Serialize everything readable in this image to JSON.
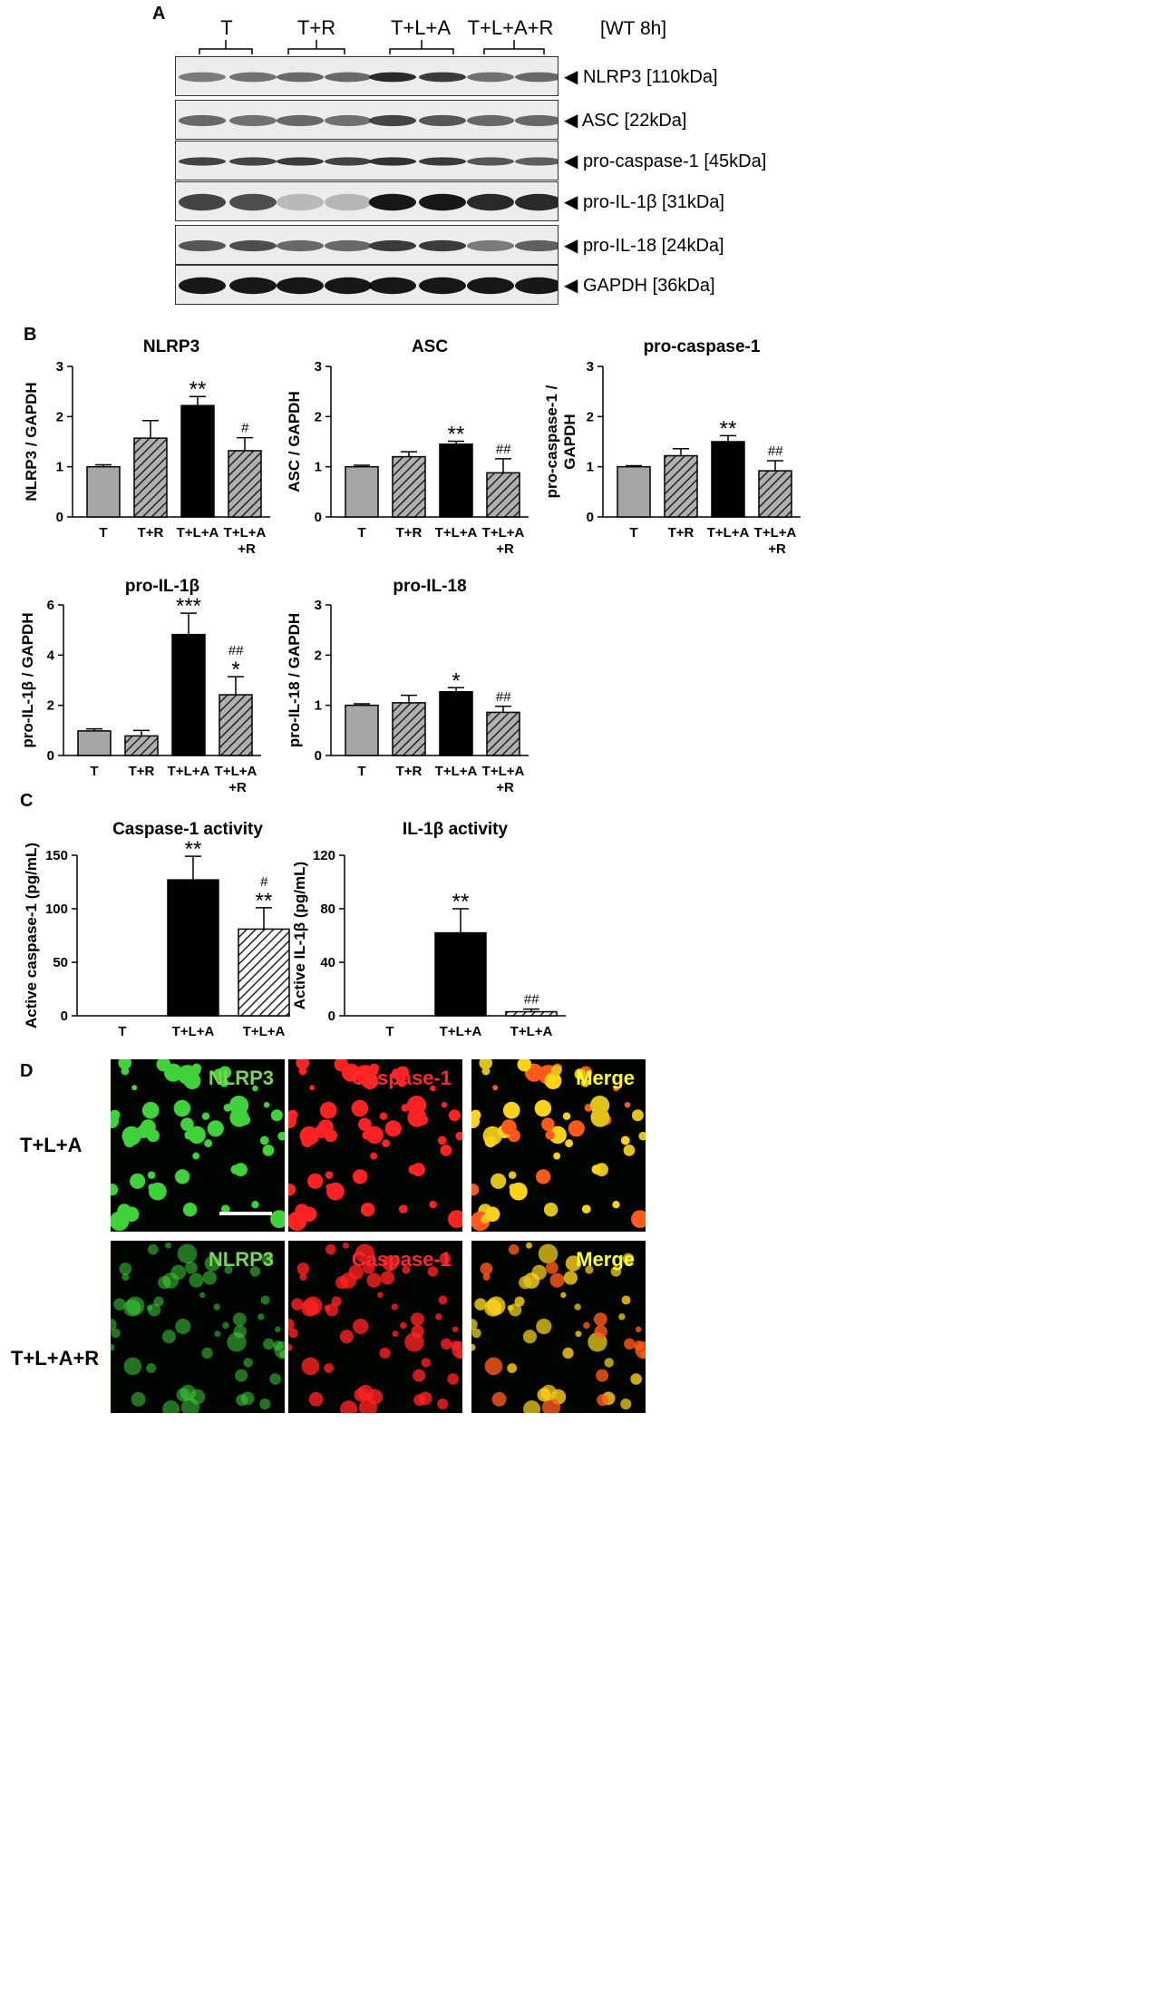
{
  "panelA": {
    "letter": "A",
    "lanes": [
      "T",
      "T+R",
      "T+L+A",
      "T+L+A+R"
    ],
    "condition": "[WT 8h]",
    "bands": [
      {
        "label": "NLRP3 [110kDa]",
        "intensity": [
          0.45,
          0.5,
          0.55,
          0.55,
          0.9,
          0.8,
          0.5,
          0.55
        ],
        "width": 7
      },
      {
        "label": "ASC [22kDa]",
        "intensity": [
          0.55,
          0.5,
          0.55,
          0.5,
          0.75,
          0.65,
          0.55,
          0.55
        ],
        "width": 8
      },
      {
        "label": "pro-caspase-1 [45kDa]",
        "intensity": [
          0.75,
          0.75,
          0.8,
          0.75,
          0.85,
          0.8,
          0.65,
          0.6
        ],
        "width": 6
      },
      {
        "label": "pro-IL-1β [31kDa]",
        "intensity": [
          0.75,
          0.7,
          0.1,
          0.12,
          1.0,
          1.0,
          0.9,
          0.9
        ],
        "width": 12
      },
      {
        "label": "pro-IL-18 [24kDa]",
        "intensity": [
          0.65,
          0.7,
          0.55,
          0.55,
          0.8,
          0.8,
          0.45,
          0.6
        ],
        "width": 8
      },
      {
        "label": "GAPDH [36kDa]",
        "intensity": [
          1,
          1,
          1,
          1,
          1,
          1,
          1,
          1
        ],
        "width": 12
      }
    ]
  },
  "panelB": {
    "letter": "B",
    "charts": [
      {
        "title": "NLRP3",
        "ylabel": "NLRP3 / GAPDH",
        "ymax": 3,
        "ticks": [
          0,
          1,
          2,
          3
        ],
        "categories": [
          "T",
          "T+R",
          "T+L+A",
          "T+L+A\n+R"
        ],
        "values": [
          1.0,
          1.57,
          2.22,
          1.32
        ],
        "errors": [
          0.04,
          0.35,
          0.18,
          0.26
        ],
        "sig_star": [
          "",
          "",
          "**",
          ""
        ],
        "sig_hash": [
          "",
          "",
          "",
          "#"
        ]
      },
      {
        "title": "ASC",
        "ylabel": "ASC / GAPDH",
        "ymax": 3,
        "ticks": [
          0,
          1,
          2,
          3
        ],
        "categories": [
          "T",
          "T+R",
          "T+L+A",
          "T+L+A\n+R"
        ],
        "values": [
          1.0,
          1.2,
          1.45,
          0.88
        ],
        "errors": [
          0.03,
          0.1,
          0.06,
          0.28
        ],
        "sig_star": [
          "",
          "",
          "**",
          ""
        ],
        "sig_hash": [
          "",
          "",
          "",
          "##"
        ]
      },
      {
        "title": "pro-caspase-1",
        "ylabel": "pro-caspase-1 /\nGAPDH",
        "ymax": 3,
        "ticks": [
          0,
          1,
          2,
          3
        ],
        "categories": [
          "T",
          "T+R",
          "T+L+A",
          "T+L+A\n+R"
        ],
        "values": [
          1.0,
          1.22,
          1.5,
          0.92
        ],
        "errors": [
          0.02,
          0.14,
          0.12,
          0.2
        ],
        "sig_star": [
          "",
          "",
          "**",
          ""
        ],
        "sig_hash": [
          "",
          "",
          "",
          "##"
        ]
      },
      {
        "title": "pro-IL-1β",
        "ylabel": "pro-IL-1β / GAPDH",
        "ymax": 6,
        "ticks": [
          0,
          2,
          4,
          6
        ],
        "categories": [
          "T",
          "T+R",
          "T+L+A",
          "T+L+A\n+R"
        ],
        "values": [
          0.98,
          0.78,
          4.82,
          2.42
        ],
        "errors": [
          0.08,
          0.22,
          0.85,
          0.72
        ],
        "sig_star": [
          "",
          "",
          "***",
          "*"
        ],
        "sig_hash": [
          "",
          "",
          "",
          "##"
        ]
      },
      {
        "title": "pro-IL-18",
        "ylabel": "pro-IL-18 / GAPDH",
        "ymax": 3,
        "ticks": [
          0,
          1,
          2,
          3
        ],
        "categories": [
          "T",
          "T+R",
          "T+L+A",
          "T+L+A\n+R"
        ],
        "values": [
          1.0,
          1.05,
          1.27,
          0.86
        ],
        "errors": [
          0.03,
          0.15,
          0.08,
          0.12
        ],
        "sig_star": [
          "",
          "",
          "*",
          ""
        ],
        "sig_hash": [
          "",
          "",
          "",
          "##"
        ]
      }
    ]
  },
  "panelC": {
    "letter": "C",
    "charts": [
      {
        "title": "Caspase-1  activity",
        "ylabel": "Active caspase-1 (pg/mL)",
        "ymax": 150,
        "ticks": [
          0,
          50,
          100,
          150
        ],
        "categories": [
          "T",
          "T+L+A",
          "T+L+A\n+R"
        ],
        "values": [
          0,
          127,
          81
        ],
        "errors": [
          0,
          22,
          20
        ],
        "sig_star": [
          "",
          "**",
          "**"
        ],
        "sig_hash": [
          "",
          "",
          "#"
        ]
      },
      {
        "title": "IL-1β activity",
        "ylabel": "Active IL-1β (pg/mL)",
        "ymax": 120,
        "ticks": [
          0,
          40,
          80,
          120
        ],
        "categories": [
          "T",
          "T+L+A",
          "T+L+A\n+R"
        ],
        "values": [
          0,
          62,
          3
        ],
        "errors": [
          0,
          18,
          2
        ],
        "sig_star": [
          "",
          "**",
          ""
        ],
        "sig_hash": [
          "",
          "",
          "##"
        ]
      }
    ]
  },
  "panelD": {
    "letter": "D",
    "rows": [
      "T+L+A",
      "T+L+A+R"
    ],
    "channels": [
      "NLRP3",
      "Caspase-1",
      "Merge"
    ],
    "channel_colors": [
      "#7dd35a",
      "#ff2a2a",
      "#ffff33"
    ]
  }
}
